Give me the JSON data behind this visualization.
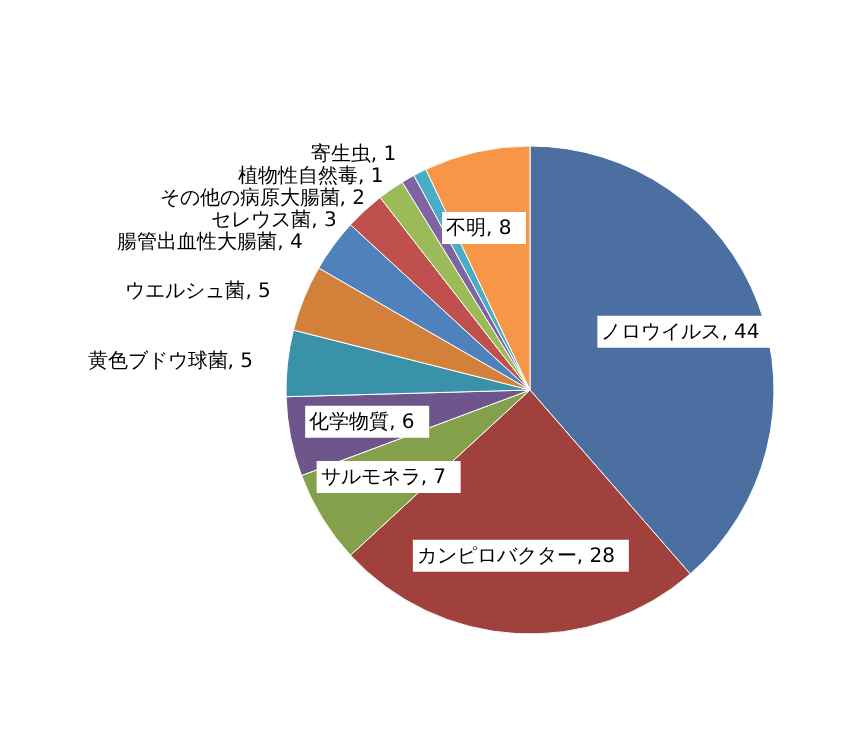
{
  "chart_data": {
    "type": "pie",
    "categories": [
      "ノロウイルス",
      "カンピロバクター",
      "サルモネラ",
      "化学物質",
      "黄色ブドウ球菌",
      "ウエルシュ菌",
      "腸管出血性大腸菌",
      "セレウス菌",
      "その他の病原大腸菌",
      "植物性自然毒",
      "寄生虫",
      "不明"
    ],
    "values": [
      44,
      28,
      7,
      6,
      5,
      5,
      4,
      3,
      2,
      1,
      1,
      8
    ],
    "colors": [
      "#4a6fa0",
      "#a0413d",
      "#84a04a",
      "#6e558c",
      "#3a92a8",
      "#d2803a",
      "#4f81bd",
      "#c0504d",
      "#9bbb59",
      "#8064a2",
      "#4bacc6",
      "#f79646"
    ],
    "value_labels": [
      ", 44",
      ", 28",
      ", 7",
      ", 6",
      ", 5",
      ", 5",
      ", 4",
      ", 3",
      ", 2",
      ", 1",
      ", 1",
      ", 8"
    ]
  }
}
